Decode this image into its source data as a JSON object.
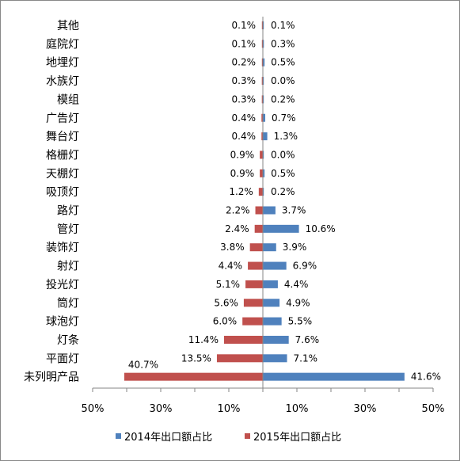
{
  "chart_data": {
    "type": "bar",
    "orientation": "horizontal",
    "layout": "butterfly",
    "colors": {
      "2014": "#4F81BD",
      "2015": "#C0504D"
    },
    "xlim": [
      -50,
      50
    ],
    "categories": [
      "其他",
      "庭院灯",
      "地埋灯",
      "水族灯",
      "模组",
      "广告灯",
      "舞台灯",
      "格栅灯",
      "天棚灯",
      "吸顶灯",
      "路灯",
      "管灯",
      "装饰灯",
      "射灯",
      "投光灯",
      "筒灯",
      "球泡灯",
      "灯条",
      "平面灯",
      "未列明产品"
    ],
    "series": [
      {
        "name": "2014年出口额占比",
        "side": "right",
        "values": [
          0.1,
          0.3,
          0.5,
          0.0,
          0.2,
          0.7,
          1.3,
          0.0,
          0.5,
          0.2,
          3.7,
          10.6,
          3.9,
          6.9,
          4.4,
          4.9,
          5.5,
          7.6,
          7.1,
          41.6
        ],
        "labels": [
          "0.1%",
          "0.3%",
          "0.5%",
          "0.0%",
          "0.2%",
          "0.7%",
          "1.3%",
          "0.0%",
          "0.5%",
          "0.2%",
          "3.7%",
          "10.6%",
          "3.9%",
          "6.9%",
          "4.4%",
          "4.9%",
          "5.5%",
          "7.6%",
          "7.1%",
          "41.6%"
        ]
      },
      {
        "name": "2015年出口额占比",
        "side": "left",
        "values": [
          0.1,
          0.1,
          0.2,
          0.3,
          0.3,
          0.4,
          0.4,
          0.9,
          0.9,
          1.2,
          2.2,
          2.4,
          3.8,
          4.4,
          5.1,
          5.6,
          6.0,
          11.4,
          13.5,
          40.7
        ],
        "labels": [
          "0.1%",
          "0.1%",
          "0.2%",
          "0.3%",
          "0.3%",
          "0.4%",
          "0.4%",
          "0.9%",
          "0.9%",
          "1.2%",
          "2.2%",
          "2.4%",
          "3.8%",
          "4.4%",
          "5.1%",
          "5.6%",
          "6.0%",
          "11.4%",
          "13.5%",
          "40.7%"
        ]
      }
    ],
    "x_ticks": [
      {
        "value": -50,
        "label": "50%"
      },
      {
        "value": -30,
        "label": "30%"
      },
      {
        "value": -10,
        "label": "10%"
      },
      {
        "value": 10,
        "label": "10%"
      },
      {
        "value": 30,
        "label": "30%"
      },
      {
        "value": 50,
        "label": "50%"
      }
    ],
    "legend_position": "bottom",
    "grid": false
  }
}
